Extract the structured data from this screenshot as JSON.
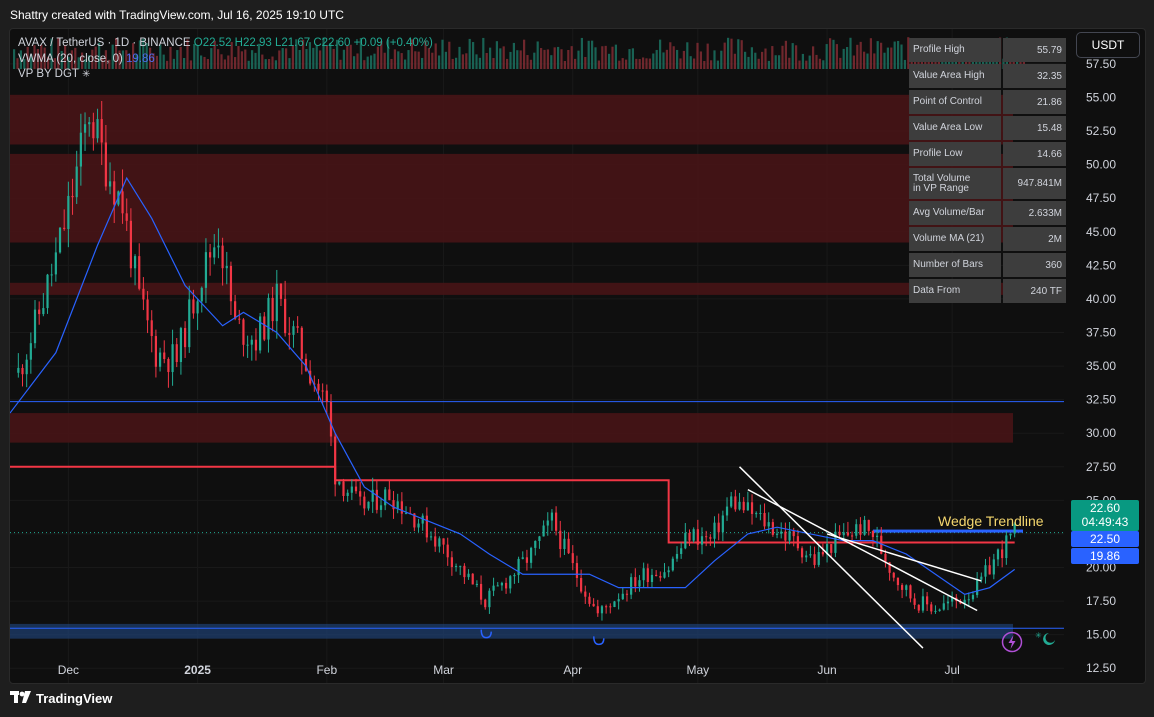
{
  "credit": "Shattry created with TradingView.com, Jul 16, 2025 19:10 UTC",
  "legend": {
    "symbol": "AVAX / TetherUS · 1D · BINANCE",
    "ohlc": "O22.52 H22.93 L21.67 C22.60 +0.09 (+0.40%)",
    "vwma_label": "VWMA (20, close, 0)",
    "vwma_value": "19.86",
    "vp_label": "VP BY DGT"
  },
  "currency_button": "USDT",
  "vp_stats": [
    {
      "label": "Profile High",
      "value": "55.79"
    },
    {
      "label": "Value Area High",
      "value": "32.35"
    },
    {
      "label": "Point of Control",
      "value": "21.86"
    },
    {
      "label": "Value Area Low",
      "value": "15.48"
    },
    {
      "label": "Profile Low",
      "value": "14.66"
    },
    {
      "label": "Total Volume\nin VP Range",
      "value": "947.841M"
    },
    {
      "label": "Avg Volume/Bar",
      "value": "2.633M"
    },
    {
      "label": "Volume MA (21)",
      "value": "2M"
    },
    {
      "label": "Number of Bars",
      "value": "360"
    },
    {
      "label": "Data From",
      "value": "240 TF"
    }
  ],
  "price_tags": {
    "last_price": "22.60",
    "countdown": "04:49:43",
    "price_2": "22.50",
    "vwma": "19.86"
  },
  "annotation": "Wedge Trendline",
  "footer_logo": "TradingView",
  "colors": {
    "bull": "#22ab94",
    "bear": "#f23645",
    "vwma": "#2962ff",
    "poc": "#f23645",
    "zone": "#4a1416",
    "value_low_zone": "#1e3d6e"
  },
  "chart_data": {
    "type": "candlestick",
    "title": "",
    "x_ticks": [
      "Dec",
      "2025",
      "Feb",
      "Mar",
      "Apr",
      "May",
      "Jun",
      "Jul"
    ],
    "y_ticks": [
      57.5,
      55,
      52.5,
      50,
      47.5,
      45,
      42.5,
      40,
      37.5,
      35,
      32.5,
      30,
      27.5,
      25,
      22.5,
      20,
      17.5,
      15,
      12.5
    ],
    "ylim": [
      11.4,
      60.1
    ],
    "x_range": [
      "2024-11-17",
      "2025-07-18"
    ],
    "series": [
      {
        "name": "AVAX / TetherUS",
        "kind": "close_path",
        "x": [
          "2024-11-19",
          "2024-11-23",
          "2024-11-28",
          "2024-12-02",
          "2024-12-06",
          "2024-12-10",
          "2024-12-14",
          "2024-12-18",
          "2024-12-22",
          "2024-12-27",
          "2025-01-01",
          "2025-01-06",
          "2025-01-10",
          "2025-01-15",
          "2025-01-20",
          "2025-01-26",
          "2025-02-01",
          "2025-02-03",
          "2025-02-09",
          "2025-02-16",
          "2025-02-23",
          "2025-03-01",
          "2025-03-06",
          "2025-03-11",
          "2025-03-16",
          "2025-03-22",
          "2025-03-27",
          "2025-04-01",
          "2025-04-07",
          "2025-04-12",
          "2025-04-18",
          "2025-04-24",
          "2025-04-29",
          "2025-05-04",
          "2025-05-09",
          "2025-05-14",
          "2025-05-19",
          "2025-05-24",
          "2025-05-29",
          "2025-06-03",
          "2025-06-09",
          "2025-06-12",
          "2025-06-17",
          "2025-06-22",
          "2025-06-27",
          "2025-07-02",
          "2025-07-07",
          "2025-07-12",
          "2025-07-16"
        ],
        "values": [
          34.5,
          38,
          43,
          48,
          54,
          50,
          47,
          40,
          36,
          35.5,
          41,
          45,
          38,
          37,
          40,
          36,
          32,
          27,
          24.5,
          25.5,
          23.5,
          21.5,
          19.5,
          17.5,
          19,
          21,
          23.5,
          20,
          16.5,
          18,
          19.5,
          20,
          22.5,
          22,
          25,
          24,
          23,
          22,
          20.5,
          22,
          23,
          22.5,
          19.5,
          17.5,
          17,
          17.5,
          18.5,
          21,
          22.6
        ]
      },
      {
        "name": "VWMA (20, close, 0)",
        "kind": "line",
        "x": [
          "2024-11-17",
          "2024-11-28",
          "2024-12-08",
          "2024-12-15",
          "2024-12-21",
          "2024-12-29",
          "2025-01-07",
          "2025-01-12",
          "2025-01-20",
          "2025-01-27",
          "2025-02-03",
          "2025-02-10",
          "2025-02-17",
          "2025-02-25",
          "2025-03-05",
          "2025-03-12",
          "2025-03-20",
          "2025-03-28",
          "2025-04-05",
          "2025-04-12",
          "2025-04-20",
          "2025-04-28",
          "2025-05-05",
          "2025-05-13",
          "2025-05-20",
          "2025-05-28",
          "2025-06-05",
          "2025-06-12",
          "2025-06-20",
          "2025-06-27",
          "2025-07-04",
          "2025-07-10",
          "2025-07-16"
        ],
        "values": [
          31.5,
          36,
          44,
          49,
          46,
          41,
          38,
          39,
          37.5,
          35,
          30,
          26,
          24.5,
          23.5,
          22.5,
          21,
          19.5,
          19.5,
          19.5,
          18.5,
          18.5,
          18.5,
          20.5,
          22.5,
          23,
          22.5,
          22,
          22,
          21,
          19.5,
          18,
          18.5,
          19.86
        ]
      }
    ],
    "lines": [
      {
        "name": "Point of Control",
        "y": 21.86
      },
      {
        "name": "Value Area High",
        "y": 32.35
      },
      {
        "name": "Value Area Low",
        "y": 15.48
      },
      {
        "name": "last price",
        "y": 22.6
      }
    ],
    "poc_steps": [
      {
        "from": "2024-11-17",
        "to": "2025-02-03",
        "y": 27.5
      },
      {
        "from": "2025-02-03",
        "to": "2025-04-24",
        "y": 26.5
      },
      {
        "from": "2025-04-24",
        "to": "2025-06-12",
        "y": 21.86
      },
      {
        "from": "2025-06-12",
        "to": "2025-07-16",
        "y": 21.86
      }
    ],
    "zones": [
      {
        "from": 51.5,
        "to": 55.2
      },
      {
        "from": 44.2,
        "to": 50.8
      },
      {
        "from": 40.3,
        "to": 41.2
      },
      {
        "from": 29.3,
        "to": 31.5
      },
      {
        "from": 14.7,
        "to": 15.8
      }
    ],
    "trendlines": [
      {
        "from": [
          "2025-05-11",
          27.5
        ],
        "to": [
          "2025-06-24",
          14.0
        ]
      },
      {
        "from": [
          "2025-05-13",
          25.8
        ],
        "to": [
          "2025-07-07",
          16.8
        ]
      },
      {
        "from": [
          "2025-06-01",
          22.5
        ],
        "to": [
          "2025-07-08",
          19.0
        ]
      }
    ]
  }
}
